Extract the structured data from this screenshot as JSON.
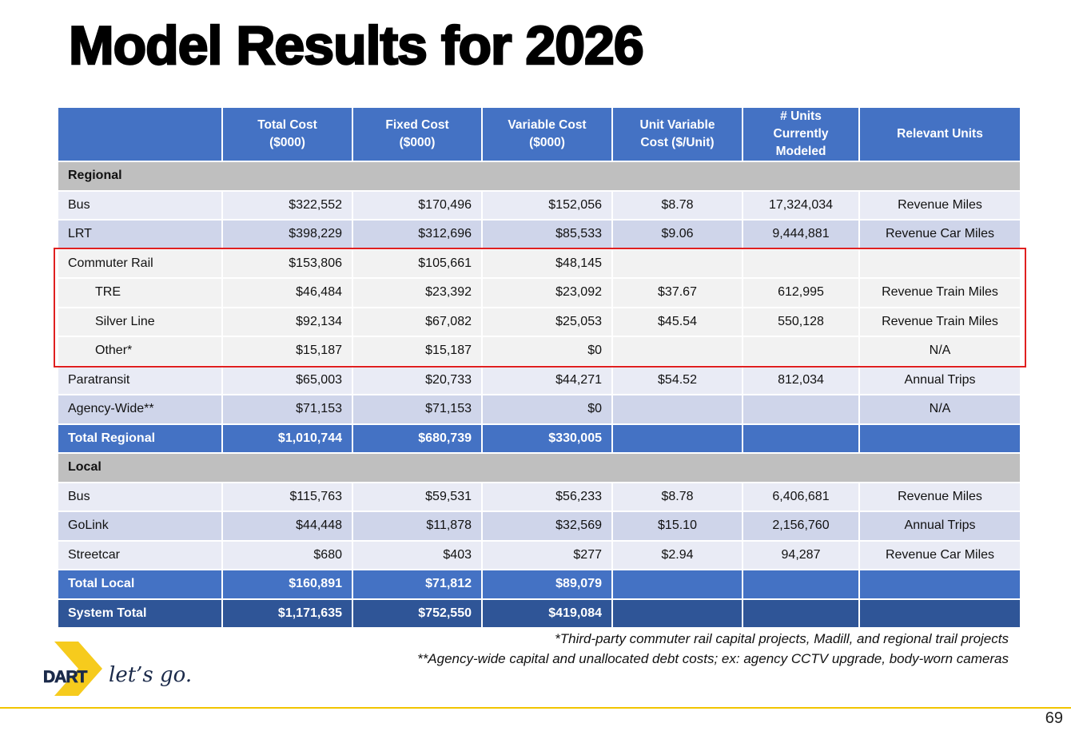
{
  "title": "Model Results for 2026",
  "table": {
    "header": [
      "Total Cost\n($000)",
      "Fixed Cost\n($000)",
      "Variable Cost\n($000)",
      "Unit Variable\nCost ($/Unit)",
      "# Units Currently\nModeled",
      "Relevant Units"
    ],
    "rows": [
      {
        "kind": "section",
        "label": "Regional"
      },
      {
        "kind": "data",
        "label": "Bus",
        "cells": [
          "$322,552",
          "$170,496",
          "$152,056",
          "$8.78",
          "17,324,034",
          "Revenue Miles"
        ]
      },
      {
        "kind": "data",
        "label": "LRT",
        "cells": [
          "$398,229",
          "$312,696",
          "$85,533",
          "$9.06",
          "9,444,881",
          "Revenue Car Miles"
        ]
      },
      {
        "kind": "data",
        "label": "Commuter Rail",
        "highlight": true,
        "cells": [
          "$153,806",
          "$105,661",
          "$48,145",
          null,
          null,
          null
        ]
      },
      {
        "kind": "data",
        "label": "TRE",
        "indent": true,
        "highlight": true,
        "cells": [
          "$46,484",
          "$23,392",
          "$23,092",
          "$37.67",
          "612,995",
          "Revenue Train Miles"
        ]
      },
      {
        "kind": "data",
        "label": "Silver Line",
        "indent": true,
        "highlight": true,
        "cells": [
          "$92,134",
          "$67,082",
          "$25,053",
          "$45.54",
          "550,128",
          "Revenue Train Miles"
        ]
      },
      {
        "kind": "data",
        "label": "Other*",
        "indent": true,
        "highlight": true,
        "cells": [
          "$15,187",
          "$15,187",
          "$0",
          null,
          null,
          "N/A"
        ]
      },
      {
        "kind": "data",
        "label": "Paratransit",
        "cells": [
          "$65,003",
          "$20,733",
          "$44,271",
          "$54.52",
          "812,034",
          "Annual Trips"
        ]
      },
      {
        "kind": "data",
        "label": "Agency-Wide**",
        "cells": [
          "$71,153",
          "$71,153",
          "$0",
          null,
          null,
          "N/A"
        ]
      },
      {
        "kind": "total",
        "label": "Total Regional",
        "cells": [
          "$1,010,744",
          "$680,739",
          "$330,005",
          null,
          null,
          null
        ]
      },
      {
        "kind": "section",
        "label": "Local"
      },
      {
        "kind": "data",
        "label": "Bus",
        "cells": [
          "$115,763",
          "$59,531",
          "$56,233",
          "$8.78",
          "6,406,681",
          "Revenue Miles"
        ]
      },
      {
        "kind": "data",
        "label": "GoLink",
        "cells": [
          "$44,448",
          "$11,878",
          "$32,569",
          "$15.10",
          "2,156,760",
          "Annual Trips"
        ]
      },
      {
        "kind": "data",
        "label": "Streetcar",
        "cells": [
          "$680",
          "$403",
          "$277",
          "$2.94",
          "94,287",
          "Revenue Car Miles"
        ]
      },
      {
        "kind": "total",
        "label": "Total Local",
        "cells": [
          "$160,891",
          "$71,812",
          "$89,079",
          null,
          null,
          null
        ]
      },
      {
        "kind": "grand",
        "label": "System Total",
        "cells": [
          "$1,171,635",
          "$752,550",
          "$419,084",
          null,
          null,
          null
        ]
      }
    ]
  },
  "footnotes": [
    "*Third-party commuter rail capital projects, Madill, and regional trail projects",
    "**Agency-wide capital and unallocated debt costs; ex: agency CCTV upgrade, body-worn cameras"
  ],
  "logo": {
    "brand": "DART",
    "tagline": "let’s go."
  },
  "page_number": "69"
}
